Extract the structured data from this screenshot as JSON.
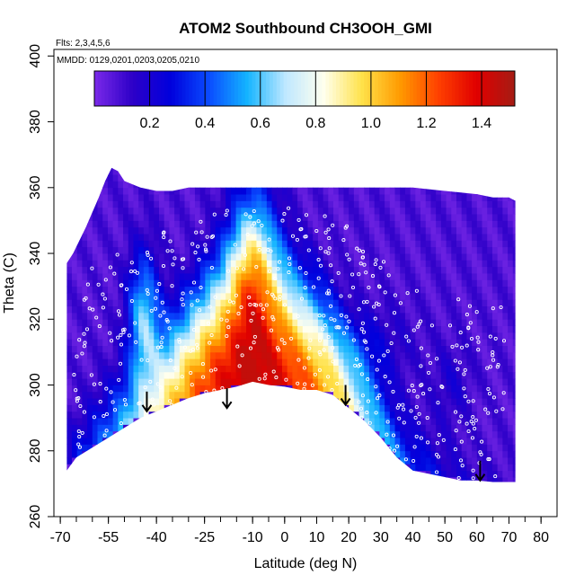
{
  "chart_data": {
    "type": "heatmap",
    "title": "ATOM2 Southbound CH3OOH_GMI",
    "flights_note": "Flts: 2,3,4,5,6",
    "dates_note": "MMDD: 0129,0201,0203,0205,0210",
    "xlabel": "Latitude (deg N)",
    "ylabel": "Theta (C)",
    "xlim": [
      -72,
      85
    ],
    "ylim": [
      260,
      402
    ],
    "x_ticks": [
      -70,
      -55,
      -40,
      -25,
      -10,
      0,
      10,
      20,
      30,
      40,
      50,
      60,
      70,
      80
    ],
    "y_ticks": [
      260,
      280,
      300,
      320,
      340,
      360,
      380,
      400
    ],
    "colorbar": {
      "range": [
        0.0,
        1.52
      ],
      "ticks": [
        0.2,
        0.4,
        0.6,
        0.8,
        1.0,
        1.2,
        1.4
      ],
      "colors": [
        "#7b2ae8",
        "#2d00c8",
        "#0000dd",
        "#0a4cff",
        "#14b4ff",
        "#bfe8ff",
        "#ffffee",
        "#ffe24a",
        "#ff9a00",
        "#ff4000",
        "#e00000",
        "#a51c14"
      ]
    },
    "arrows_lat": [
      -43,
      -18,
      19,
      61
    ],
    "arrows_theta": [
      292,
      293,
      294,
      271
    ],
    "lower_boundary": {
      "lat": [
        -68,
        -65,
        -60,
        -55,
        -50,
        -45,
        -40,
        -35,
        -30,
        -25,
        -20,
        -15,
        -10,
        -5,
        0,
        5,
        10,
        15,
        20,
        25,
        30,
        35,
        40,
        45,
        50,
        55,
        60,
        65,
        70,
        72
      ],
      "theta": [
        274,
        278,
        281,
        284,
        287,
        290,
        292,
        294,
        296,
        297.5,
        298.5,
        299.5,
        301,
        300,
        299.5,
        298.5,
        298.5,
        297,
        293,
        289,
        284,
        278,
        274,
        273,
        272,
        271,
        271,
        270.5,
        270.5,
        270.5
      ]
    },
    "upper_boundary": {
      "lat": [
        -68,
        -66,
        -62,
        -58,
        -56,
        -54,
        -52,
        -50,
        -45,
        -40,
        -35,
        -30,
        -25,
        -20,
        -15,
        -10,
        -5,
        0,
        5,
        10,
        20,
        30,
        40,
        50,
        60,
        65,
        70,
        72
      ],
      "theta": [
        337,
        340,
        348,
        357,
        362,
        366,
        365,
        362,
        360,
        359,
        359,
        360,
        360,
        360,
        360,
        360,
        360,
        360,
        360,
        360,
        360,
        360,
        360,
        359,
        358,
        357,
        357,
        356
      ]
    },
    "plume_main": {
      "center_lat": -10,
      "center_theta": 304,
      "value": 1.35
    },
    "plume_left": {
      "center_lat": -44,
      "center_theta": 322,
      "value": 0.5
    }
  }
}
